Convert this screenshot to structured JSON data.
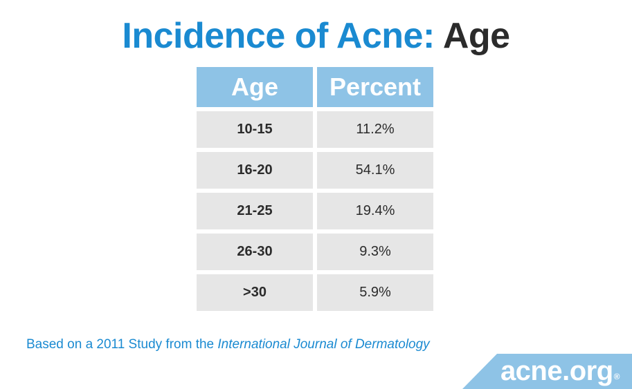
{
  "title": {
    "accent_text": "Incidence of Acne:",
    "dark_text": "Age"
  },
  "chart_data": {
    "type": "table",
    "columns": [
      "Age",
      "Percent"
    ],
    "rows": [
      {
        "age": "10-15",
        "percent": "11.2%"
      },
      {
        "age": "16-20",
        "percent": "54.1%"
      },
      {
        "age": "21-25",
        "percent": "19.4%"
      },
      {
        "age": "26-30",
        "percent": "9.3%"
      },
      {
        "age": ">30",
        "percent": "5.9%"
      }
    ]
  },
  "source": {
    "prefix": "Based on a 2011 Study from the ",
    "journal": "International Journal of Dermatology"
  },
  "logo": {
    "text": "acne.org",
    "mark": "®"
  },
  "colors": {
    "accent": "#1a8ad1",
    "header_fill": "#8ec3e6",
    "cell_fill": "#e6e6e6",
    "logo_band": "#8ec3e6",
    "text_dark": "#2b2b2b"
  }
}
